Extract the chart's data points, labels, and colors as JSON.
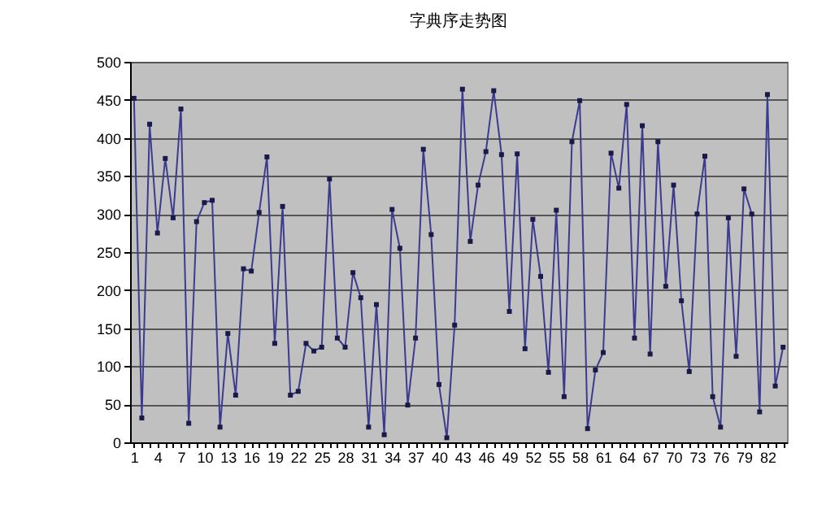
{
  "chart_data": {
    "type": "line",
    "title": "字典序走势图",
    "categories": [
      "1",
      null,
      null,
      "4",
      null,
      null,
      "7",
      null,
      null,
      "10",
      null,
      null,
      "13",
      null,
      null,
      "16",
      null,
      null,
      "19",
      null,
      null,
      "22",
      null,
      null,
      "25",
      null,
      null,
      "28",
      null,
      null,
      "31",
      null,
      null,
      "34",
      null,
      null,
      "37",
      null,
      null,
      "40",
      null,
      null,
      "43",
      null,
      null,
      "46",
      null,
      null,
      "49",
      null,
      null,
      "52",
      null,
      null,
      "55",
      null,
      null,
      "58",
      null,
      null,
      "61",
      null,
      null,
      "64",
      null,
      null,
      "67",
      null,
      null,
      "70",
      null,
      null,
      "73",
      null,
      null,
      "76",
      null,
      null,
      "79",
      null,
      null,
      "82",
      null,
      null
    ],
    "series": [
      {
        "color": "#3b3b8f",
        "values": [
          452,
          32,
          418,
          275,
          373,
          295,
          438,
          25,
          290,
          315,
          318,
          20,
          143,
          62,
          228,
          225,
          302,
          375,
          130,
          310,
          62,
          67,
          130,
          120,
          125,
          346,
          137,
          125,
          223,
          190,
          20,
          181,
          10,
          306,
          255,
          49,
          137,
          385,
          273,
          76,
          6,
          154,
          464,
          264,
          338,
          382,
          462,
          378,
          172,
          379,
          123,
          293,
          218,
          92,
          305,
          60,
          395,
          449,
          18,
          95,
          118,
          380,
          334,
          444,
          137,
          416,
          116,
          395,
          205,
          338,
          186,
          93,
          300,
          376,
          60,
          20,
          295,
          113,
          333,
          300,
          40,
          457,
          74,
          125
        ]
      }
    ],
    "ylim": [
      0,
      500
    ],
    "yticks": [
      0,
      50,
      100,
      150,
      200,
      250,
      300,
      350,
      400,
      450,
      500
    ],
    "grid": "y",
    "marker": "square",
    "line_style": "solid"
  }
}
